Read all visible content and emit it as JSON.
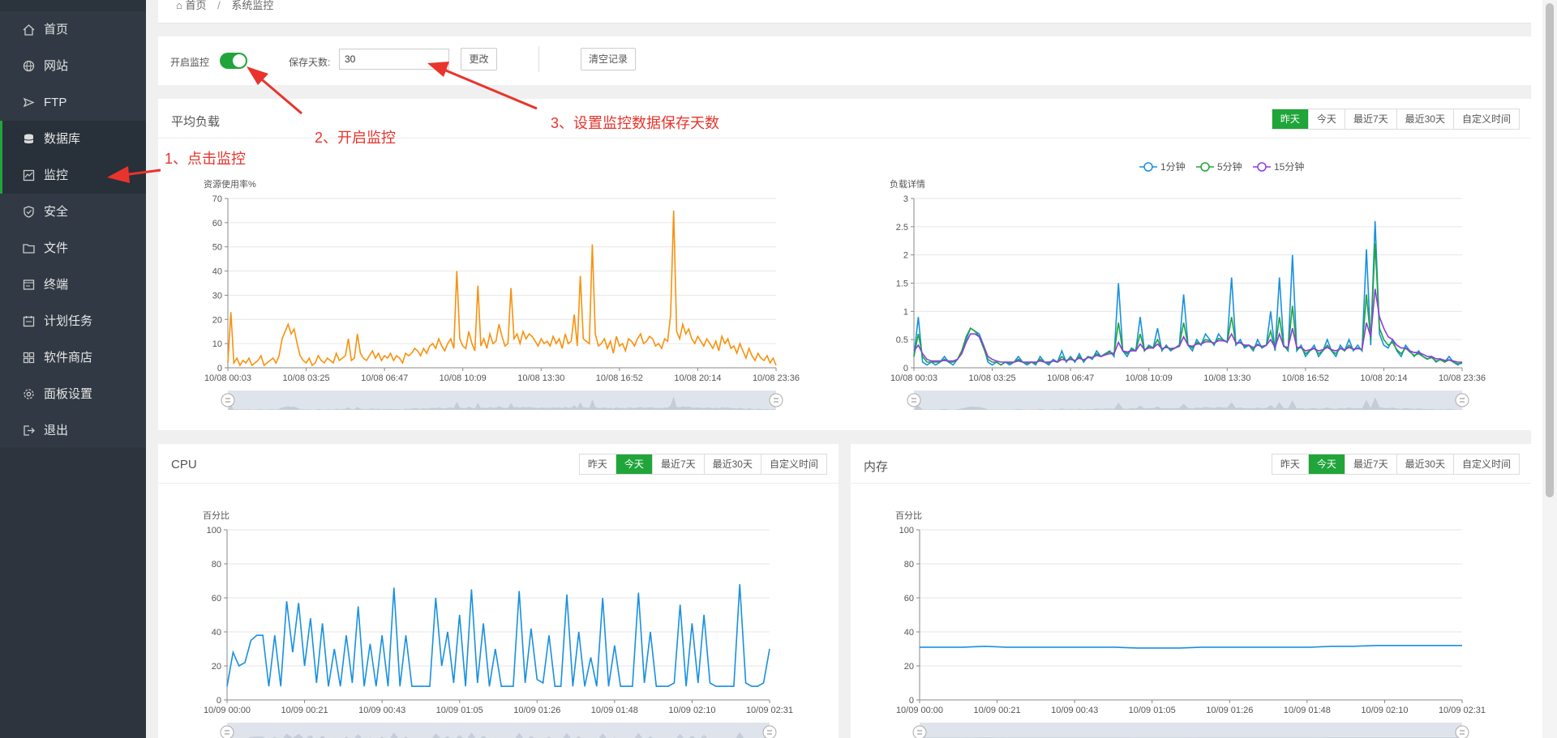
{
  "sidebar": {
    "items": [
      {
        "label": "首页",
        "icon": "home-icon"
      },
      {
        "label": "网站",
        "icon": "globe-icon"
      },
      {
        "label": "FTP",
        "icon": "ftp-icon"
      },
      {
        "label": "数据库",
        "icon": "database-icon"
      },
      {
        "label": "监控",
        "icon": "monitor-icon"
      },
      {
        "label": "安全",
        "icon": "shield-icon"
      },
      {
        "label": "文件",
        "icon": "folder-icon"
      },
      {
        "label": "终端",
        "icon": "terminal-icon"
      },
      {
        "label": "计划任务",
        "icon": "calendar-icon"
      },
      {
        "label": "软件商店",
        "icon": "grid-icon"
      },
      {
        "label": "面板设置",
        "icon": "gear-icon"
      },
      {
        "label": "退出",
        "icon": "logout-icon"
      }
    ],
    "active_index": 4
  },
  "breadcrumb": {
    "home": "首页",
    "sep": "/",
    "current": "系统监控"
  },
  "controls": {
    "enable_label": "开启监控",
    "enabled": true,
    "days_label": "保存天数:",
    "days_value": "30",
    "change_btn": "更改",
    "clear_btn": "清空记录"
  },
  "range_tabs": [
    "昨天",
    "今天",
    "最近7天",
    "最近30天",
    "自定义时间"
  ],
  "load_panel": {
    "title": "平均负载",
    "active_tab": 0,
    "legend": [
      "1分钟",
      "5分钟",
      "15分钟"
    ]
  },
  "cpu_panel": {
    "title": "CPU",
    "active_tab": 1
  },
  "mem_panel": {
    "title": "内存",
    "active_tab": 1
  },
  "annotations": {
    "a1": "1、点击监控",
    "a2": "2、开启监控",
    "a3": "3、设置监控数据保存天数"
  },
  "colors": {
    "accent": "#20a53a",
    "sidebar": "#313a44",
    "orange": "#f7920f",
    "blue": "#1890e0",
    "green": "#20a53a",
    "purple": "#8c3ce0",
    "annotation": "#e8342c"
  },
  "chart_data": [
    {
      "type": "line",
      "title": "",
      "ylabel": "资源使用率%",
      "ylim": [
        0,
        70
      ],
      "yticks": [
        0,
        10,
        20,
        30,
        40,
        50,
        60,
        70
      ],
      "xticks": [
        "10/08 00:03",
        "10/08 03:25",
        "10/08 06:47",
        "10/08 10:09",
        "10/08 13:30",
        "10/08 16:52",
        "10/08 20:14",
        "10/08 23:36"
      ],
      "series": [
        {
          "values": [
            2,
            23,
            2,
            4,
            1,
            3,
            2,
            4,
            1,
            2,
            3,
            5,
            1,
            2,
            3,
            4,
            2,
            5,
            12,
            15,
            18,
            14,
            16,
            10,
            5,
            3,
            2,
            4,
            1,
            2,
            5,
            3,
            2,
            4,
            3,
            2,
            6,
            3,
            4,
            5,
            12,
            3,
            4,
            14,
            6,
            4,
            3,
            5,
            7,
            4,
            6,
            3,
            5,
            4,
            6,
            3,
            5,
            4,
            2,
            6,
            5,
            6,
            8,
            7,
            5,
            8,
            6,
            9,
            10,
            8,
            12,
            9,
            7,
            10,
            12,
            8,
            40,
            12,
            9,
            8,
            15,
            10,
            7,
            34,
            9,
            12,
            8,
            14,
            10,
            11,
            18,
            13,
            9,
            10,
            33,
            12,
            14,
            10,
            15,
            12,
            14,
            13,
            11,
            9,
            12,
            10,
            11,
            9,
            13,
            10,
            12,
            8,
            14,
            10,
            11,
            22,
            9,
            38,
            12,
            11,
            10,
            51,
            14,
            9,
            10,
            12,
            8,
            11,
            6,
            13,
            9,
            10,
            7,
            12,
            11,
            9,
            12,
            14,
            10,
            11,
            13,
            12,
            9,
            10,
            8,
            12,
            11,
            22,
            65,
            15,
            12,
            18,
            14,
            16,
            12,
            10,
            13,
            11,
            9,
            12,
            10,
            8,
            11,
            7,
            13,
            10,
            12,
            8,
            9,
            6,
            10,
            7,
            4,
            8,
            5,
            3,
            6,
            4,
            3,
            5,
            2,
            4,
            1
          ]
        }
      ]
    },
    {
      "type": "line",
      "title": "",
      "ylabel": "负载详情",
      "ylim": [
        0,
        3
      ],
      "yticks": [
        0,
        0.5,
        1,
        1.5,
        2,
        2.5,
        3
      ],
      "xticks": [
        "10/08 00:03",
        "10/08 03:25",
        "10/08 06:47",
        "10/08 10:09",
        "10/08 13:30",
        "10/08 16:52",
        "10/08 20:14",
        "10/08 23:36"
      ],
      "legend_position": "top",
      "series": [
        {
          "name": "1分钟",
          "values": [
            0.2,
            0.9,
            0.1,
            0.05,
            0.1,
            0.05,
            0.1,
            0.2,
            0.1,
            0.05,
            0.15,
            0.3,
            0.5,
            0.7,
            0.65,
            0.6,
            0.4,
            0.1,
            0.05,
            0.1,
            0.05,
            0.1,
            0.05,
            0.1,
            0.2,
            0.1,
            0.05,
            0.1,
            0.05,
            0.2,
            0.1,
            0.05,
            0.15,
            0.1,
            0.3,
            0.1,
            0.2,
            0.1,
            0.25,
            0.1,
            0.2,
            0.15,
            0.3,
            0.2,
            0.25,
            0.3,
            0.2,
            1.5,
            0.3,
            0.2,
            0.35,
            0.3,
            0.9,
            0.3,
            0.4,
            0.35,
            0.7,
            0.3,
            0.4,
            0.3,
            0.35,
            0.4,
            1.3,
            0.4,
            0.3,
            0.5,
            0.4,
            0.6,
            0.5,
            0.4,
            0.6,
            0.5,
            0.45,
            1.6,
            0.4,
            0.5,
            0.35,
            0.4,
            0.3,
            0.5,
            0.35,
            0.4,
            1.0,
            0.3,
            1.6,
            0.4,
            0.3,
            2.0,
            0.3,
            0.4,
            0.2,
            0.3,
            0.4,
            0.2,
            0.3,
            0.5,
            0.3,
            0.2,
            0.4,
            0.3,
            0.5,
            0.3,
            0.4,
            0.3,
            2.1,
            0.4,
            2.6,
            0.6,
            0.4,
            0.35,
            0.5,
            0.3,
            0.2,
            0.4,
            0.3,
            0.2,
            0.3,
            0.2,
            0.15,
            0.2,
            0.1,
            0.15,
            0.1,
            0.2,
            0.1,
            0.05,
            0.1
          ]
        },
        {
          "name": "5分钟",
          "values": [
            0.2,
            0.6,
            0.2,
            0.1,
            0.1,
            0.1,
            0.1,
            0.15,
            0.1,
            0.1,
            0.15,
            0.3,
            0.55,
            0.7,
            0.65,
            0.55,
            0.35,
            0.15,
            0.1,
            0.1,
            0.05,
            0.1,
            0.08,
            0.1,
            0.15,
            0.1,
            0.08,
            0.1,
            0.08,
            0.15,
            0.1,
            0.08,
            0.12,
            0.1,
            0.2,
            0.12,
            0.18,
            0.12,
            0.2,
            0.12,
            0.2,
            0.18,
            0.25,
            0.2,
            0.25,
            0.28,
            0.25,
            0.8,
            0.3,
            0.25,
            0.33,
            0.3,
            0.6,
            0.3,
            0.38,
            0.35,
            0.5,
            0.32,
            0.38,
            0.32,
            0.35,
            0.4,
            0.8,
            0.4,
            0.35,
            0.45,
            0.42,
            0.5,
            0.48,
            0.42,
            0.52,
            0.5,
            0.45,
            0.9,
            0.42,
            0.45,
            0.38,
            0.4,
            0.33,
            0.42,
            0.36,
            0.4,
            0.65,
            0.32,
            0.9,
            0.38,
            0.33,
            1.1,
            0.33,
            0.36,
            0.25,
            0.3,
            0.35,
            0.25,
            0.3,
            0.4,
            0.3,
            0.25,
            0.35,
            0.3,
            0.4,
            0.32,
            0.35,
            0.32,
            1.3,
            0.5,
            2.2,
            0.7,
            0.5,
            0.4,
            0.45,
            0.32,
            0.25,
            0.35,
            0.28,
            0.22,
            0.25,
            0.2,
            0.16,
            0.18,
            0.12,
            0.14,
            0.1,
            0.14,
            0.1,
            0.07,
            0.08
          ]
        },
        {
          "name": "15分钟",
          "values": [
            0.3,
            0.4,
            0.25,
            0.15,
            0.12,
            0.12,
            0.12,
            0.13,
            0.12,
            0.12,
            0.15,
            0.25,
            0.45,
            0.6,
            0.6,
            0.55,
            0.4,
            0.2,
            0.15,
            0.12,
            0.1,
            0.1,
            0.1,
            0.1,
            0.12,
            0.1,
            0.1,
            0.1,
            0.1,
            0.12,
            0.1,
            0.1,
            0.12,
            0.1,
            0.15,
            0.13,
            0.15,
            0.13,
            0.17,
            0.14,
            0.18,
            0.18,
            0.22,
            0.2,
            0.23,
            0.25,
            0.25,
            0.45,
            0.3,
            0.28,
            0.3,
            0.3,
            0.42,
            0.32,
            0.35,
            0.35,
            0.42,
            0.34,
            0.36,
            0.34,
            0.35,
            0.38,
            0.55,
            0.4,
            0.38,
            0.42,
            0.42,
            0.46,
            0.46,
            0.44,
            0.48,
            0.48,
            0.46,
            0.6,
            0.44,
            0.44,
            0.4,
            0.4,
            0.36,
            0.4,
            0.38,
            0.4,
            0.5,
            0.36,
            0.6,
            0.38,
            0.36,
            0.7,
            0.36,
            0.36,
            0.3,
            0.32,
            0.34,
            0.3,
            0.32,
            0.36,
            0.32,
            0.3,
            0.34,
            0.32,
            0.36,
            0.33,
            0.34,
            0.33,
            0.8,
            0.55,
            1.4,
            0.9,
            0.7,
            0.55,
            0.5,
            0.4,
            0.35,
            0.35,
            0.3,
            0.27,
            0.27,
            0.24,
            0.2,
            0.2,
            0.16,
            0.16,
            0.13,
            0.14,
            0.12,
            0.1,
            0.1
          ]
        }
      ]
    },
    {
      "type": "line",
      "title": "",
      "ylabel": "百分比",
      "ylim": [
        0,
        100
      ],
      "yticks": [
        0,
        20,
        40,
        60,
        80,
        100
      ],
      "xticks": [
        "10/09 00:00",
        "10/09 00:21",
        "10/09 00:43",
        "10/09 01:05",
        "10/09 01:26",
        "10/09 01:48",
        "10/09 02:10",
        "10/09 02:31"
      ],
      "series": [
        {
          "values": [
            8,
            28,
            20,
            22,
            35,
            38,
            38,
            8,
            38,
            8,
            58,
            28,
            57,
            20,
            48,
            10,
            45,
            8,
            30,
            8,
            38,
            10,
            55,
            8,
            33,
            8,
            38,
            8,
            66,
            8,
            38,
            8,
            8,
            8,
            8,
            60,
            20,
            40,
            10,
            50,
            8,
            65,
            10,
            45,
            8,
            30,
            8,
            8,
            8,
            64,
            10,
            42,
            12,
            10,
            38,
            8,
            8,
            62,
            8,
            40,
            8,
            25,
            8,
            60,
            8,
            32,
            8,
            8,
            8,
            63,
            10,
            40,
            8,
            8,
            8,
            10,
            56,
            8,
            45,
            10,
            50,
            10,
            8,
            8,
            8,
            8,
            68,
            10,
            8,
            8,
            10,
            30
          ]
        }
      ]
    },
    {
      "type": "line",
      "title": "",
      "ylabel": "百分比",
      "ylim": [
        0,
        100
      ],
      "yticks": [
        0,
        20,
        40,
        60,
        80,
        100
      ],
      "xticks": [
        "10/09 00:00",
        "10/09 00:21",
        "10/09 00:43",
        "10/09 01:05",
        "10/09 01:26",
        "10/09 01:48",
        "10/09 02:10",
        "10/09 02:31"
      ],
      "series": [
        {
          "values": [
            31,
            31,
            31,
            31.5,
            31,
            31,
            31,
            31,
            31,
            31,
            30.5,
            30.5,
            30.5,
            31,
            31,
            31,
            31,
            31,
            31,
            31.5,
            31.5,
            32,
            32,
            32,
            32,
            32
          ]
        }
      ]
    }
  ]
}
